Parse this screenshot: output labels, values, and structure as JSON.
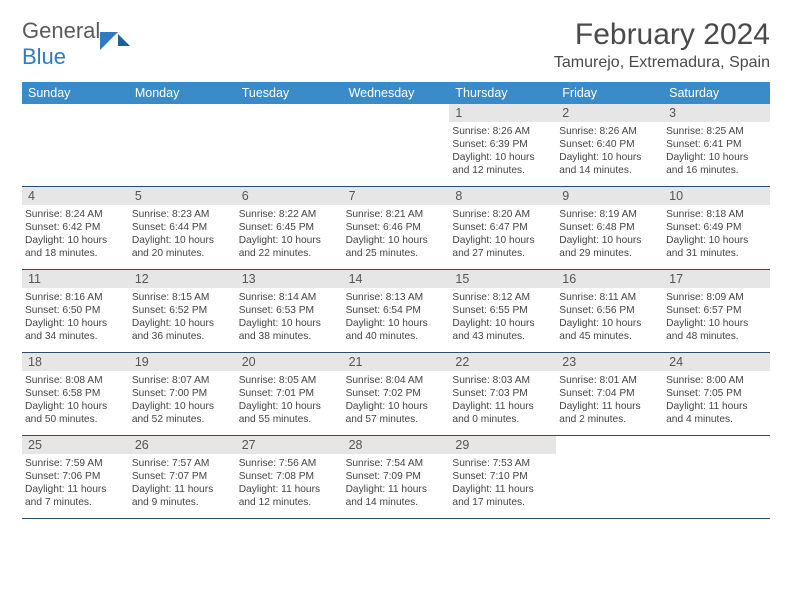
{
  "brand": {
    "part1": "General",
    "part2": "Blue"
  },
  "title": "February 2024",
  "location": "Tamurejo, Extremadura, Spain",
  "colors": {
    "header_bg": "#3b8bc8",
    "daynum_bg": "#e6e6e6",
    "week_border": "#2b4d6b",
    "text": "#333333"
  },
  "weekdays": [
    "Sunday",
    "Monday",
    "Tuesday",
    "Wednesday",
    "Thursday",
    "Friday",
    "Saturday"
  ],
  "weeks": [
    [
      null,
      null,
      null,
      null,
      {
        "n": "1",
        "lines": "Sunrise: 8:26 AM\nSunset: 6:39 PM\nDaylight: 10 hours\nand 12 minutes."
      },
      {
        "n": "2",
        "lines": "Sunrise: 8:26 AM\nSunset: 6:40 PM\nDaylight: 10 hours\nand 14 minutes."
      },
      {
        "n": "3",
        "lines": "Sunrise: 8:25 AM\nSunset: 6:41 PM\nDaylight: 10 hours\nand 16 minutes."
      }
    ],
    [
      {
        "n": "4",
        "lines": "Sunrise: 8:24 AM\nSunset: 6:42 PM\nDaylight: 10 hours\nand 18 minutes."
      },
      {
        "n": "5",
        "lines": "Sunrise: 8:23 AM\nSunset: 6:44 PM\nDaylight: 10 hours\nand 20 minutes."
      },
      {
        "n": "6",
        "lines": "Sunrise: 8:22 AM\nSunset: 6:45 PM\nDaylight: 10 hours\nand 22 minutes."
      },
      {
        "n": "7",
        "lines": "Sunrise: 8:21 AM\nSunset: 6:46 PM\nDaylight: 10 hours\nand 25 minutes."
      },
      {
        "n": "8",
        "lines": "Sunrise: 8:20 AM\nSunset: 6:47 PM\nDaylight: 10 hours\nand 27 minutes."
      },
      {
        "n": "9",
        "lines": "Sunrise: 8:19 AM\nSunset: 6:48 PM\nDaylight: 10 hours\nand 29 minutes."
      },
      {
        "n": "10",
        "lines": "Sunrise: 8:18 AM\nSunset: 6:49 PM\nDaylight: 10 hours\nand 31 minutes."
      }
    ],
    [
      {
        "n": "11",
        "lines": "Sunrise: 8:16 AM\nSunset: 6:50 PM\nDaylight: 10 hours\nand 34 minutes."
      },
      {
        "n": "12",
        "lines": "Sunrise: 8:15 AM\nSunset: 6:52 PM\nDaylight: 10 hours\nand 36 minutes."
      },
      {
        "n": "13",
        "lines": "Sunrise: 8:14 AM\nSunset: 6:53 PM\nDaylight: 10 hours\nand 38 minutes."
      },
      {
        "n": "14",
        "lines": "Sunrise: 8:13 AM\nSunset: 6:54 PM\nDaylight: 10 hours\nand 40 minutes."
      },
      {
        "n": "15",
        "lines": "Sunrise: 8:12 AM\nSunset: 6:55 PM\nDaylight: 10 hours\nand 43 minutes."
      },
      {
        "n": "16",
        "lines": "Sunrise: 8:11 AM\nSunset: 6:56 PM\nDaylight: 10 hours\nand 45 minutes."
      },
      {
        "n": "17",
        "lines": "Sunrise: 8:09 AM\nSunset: 6:57 PM\nDaylight: 10 hours\nand 48 minutes."
      }
    ],
    [
      {
        "n": "18",
        "lines": "Sunrise: 8:08 AM\nSunset: 6:58 PM\nDaylight: 10 hours\nand 50 minutes."
      },
      {
        "n": "19",
        "lines": "Sunrise: 8:07 AM\nSunset: 7:00 PM\nDaylight: 10 hours\nand 52 minutes."
      },
      {
        "n": "20",
        "lines": "Sunrise: 8:05 AM\nSunset: 7:01 PM\nDaylight: 10 hours\nand 55 minutes."
      },
      {
        "n": "21",
        "lines": "Sunrise: 8:04 AM\nSunset: 7:02 PM\nDaylight: 10 hours\nand 57 minutes."
      },
      {
        "n": "22",
        "lines": "Sunrise: 8:03 AM\nSunset: 7:03 PM\nDaylight: 11 hours\nand 0 minutes."
      },
      {
        "n": "23",
        "lines": "Sunrise: 8:01 AM\nSunset: 7:04 PM\nDaylight: 11 hours\nand 2 minutes."
      },
      {
        "n": "24",
        "lines": "Sunrise: 8:00 AM\nSunset: 7:05 PM\nDaylight: 11 hours\nand 4 minutes."
      }
    ],
    [
      {
        "n": "25",
        "lines": "Sunrise: 7:59 AM\nSunset: 7:06 PM\nDaylight: 11 hours\nand 7 minutes."
      },
      {
        "n": "26",
        "lines": "Sunrise: 7:57 AM\nSunset: 7:07 PM\nDaylight: 11 hours\nand 9 minutes."
      },
      {
        "n": "27",
        "lines": "Sunrise: 7:56 AM\nSunset: 7:08 PM\nDaylight: 11 hours\nand 12 minutes."
      },
      {
        "n": "28",
        "lines": "Sunrise: 7:54 AM\nSunset: 7:09 PM\nDaylight: 11 hours\nand 14 minutes."
      },
      {
        "n": "29",
        "lines": "Sunrise: 7:53 AM\nSunset: 7:10 PM\nDaylight: 11 hours\nand 17 minutes."
      },
      null,
      null
    ]
  ]
}
